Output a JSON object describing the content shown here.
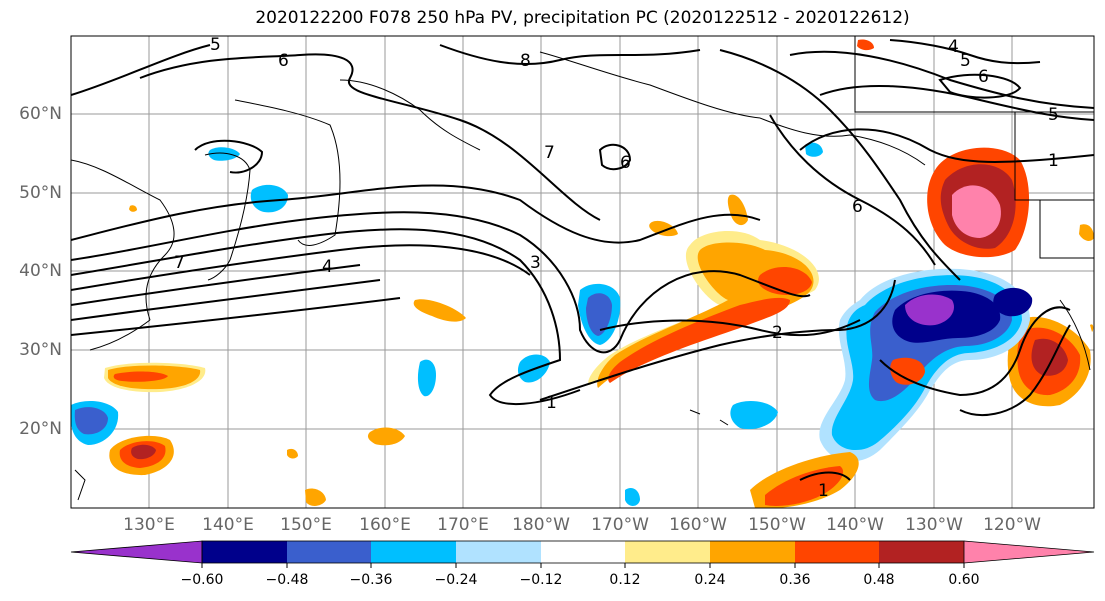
{
  "title": "2020122200 F078 250 hPa PV, precipitation PC (2020122512 - 2020122612)",
  "latitude_labels": [
    "60°N",
    "50°N",
    "40°N",
    "30°N",
    "20°N"
  ],
  "longitude_labels": [
    "130°E",
    "140°E",
    "150°E",
    "160°E",
    "170°E",
    "180°W",
    "170°W",
    "160°W",
    "150°W",
    "140°W",
    "130°W",
    "120°W"
  ],
  "colorbar": {
    "ticks": [
      "−0.60",
      "−0.48",
      "−0.36",
      "−0.24",
      "−0.12",
      "0.12",
      "0.24",
      "0.36",
      "0.48",
      "0.60"
    ],
    "colors": [
      "#9932cc",
      "#00008b",
      "#3a5fcd",
      "#00bfff",
      "#b0e2ff",
      "#ffffff",
      "#ffec8b",
      "#ffa500",
      "#ff4500",
      "#b22222",
      "#ff82ab"
    ]
  },
  "contour_labels": [
    "5",
    "6",
    "8",
    "4",
    "5",
    "6",
    "5",
    "7",
    "6",
    "6",
    "1",
    "7",
    "4",
    "3",
    "2",
    "1",
    "1"
  ]
}
